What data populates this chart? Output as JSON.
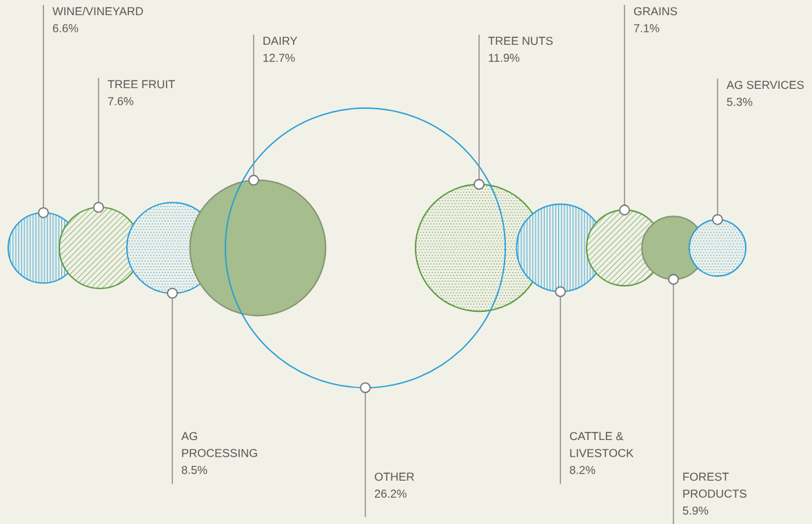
{
  "chart_data": {
    "type": "other",
    "value_labels": [
      "6.6%",
      "7.6%",
      "8.5%",
      "12.7%",
      "26.2%",
      "11.9%",
      "8.2%",
      "7.1%",
      "5.9%",
      "5.3%"
    ],
    "categories": [
      "WINE/VINEYARD",
      "TREE FRUIT",
      "AG\nPROCESSING",
      "DAIRY",
      "OTHER",
      "TREE NUTS",
      "CATTLE &\nLIVESTOCK",
      "GRAINS",
      "FOREST\nPRODUCTS",
      "AG SERVICES"
    ],
    "values": [
      6.6,
      7.6,
      8.5,
      12.7,
      26.2,
      11.9,
      8.2,
      7.1,
      5.9,
      5.3
    ],
    "colors": [
      "#2a9fd6",
      "#5b9a3e",
      "#2a9fd6",
      "#a6bd8e",
      "#2a9fd6",
      "#5b9a3e",
      "#2a9fd6",
      "#5b9a3e",
      "#a6bd8e",
      "#2a9fd6"
    ]
  }
}
